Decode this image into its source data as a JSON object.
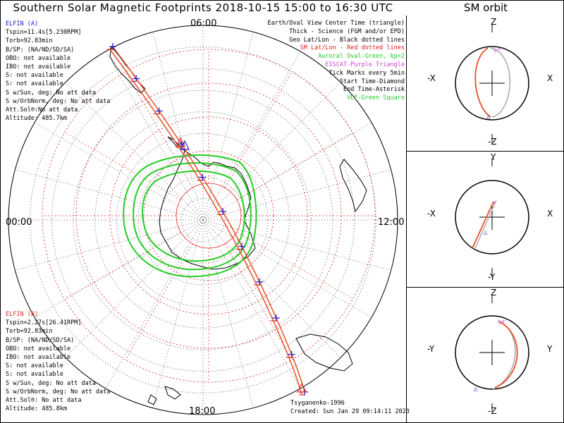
{
  "title": "Southern Solar Magnetic Footprints 2018-10-15 15:00 to 16:30 UTC",
  "orbit_title": "SM orbit",
  "colors": {
    "probe_a": "#2222cc",
    "probe_b": "#dd3322",
    "aurora": "#22cc22",
    "eiscat": "#cc44cc",
    "vlf": "#22cc22",
    "grid_red": "#e02020",
    "track": "#e8502a"
  },
  "hours": {
    "top": "06:00",
    "left": "00:00",
    "right": "12:00",
    "bottom": "18:00"
  },
  "probe_a": {
    "name": "ELFIN (A)",
    "lines": [
      "Tspin=11.4s[5.230RPM]",
      "Torb=92.83min",
      "B/SP: (NA/ND/SD/SA)",
      "OBO: not available",
      "IBO: not available",
      "S: not available",
      "S: not available",
      "S w/Sun, deg: No att data",
      "S w/OrbNorm, deg: No att data",
      "Att.Sol®:No att data",
      "Altitude: 485.7km"
    ]
  },
  "probe_b": {
    "name": "ELFIN (B)",
    "lines": [
      "Tspin=2.27s[26.41RPM]",
      "Torb=92.83min",
      "B/SP: (NA/ND/SD/SA)",
      "OBO: not available",
      "IBO: not available",
      "S: not available",
      "S: not available",
      "S w/Sun, deg: No att data",
      "S w/OrbNorm, deg: No att data",
      "Att.Sol®: No att data",
      "Altitude: 485.8km"
    ]
  },
  "legend": [
    {
      "text": "Earth/Oval View Center Time (triangle)",
      "color": "#000000"
    },
    {
      "text": "Thick - Science (FGM and/or EPD)",
      "color": "#000000"
    },
    {
      "text": "Geo Lat/Lon - Black dotted lines",
      "color": "#000000"
    },
    {
      "text": "SM Lat/Lon - Red dotted lines",
      "color": "#e02020"
    },
    {
      "text": "Auroral Oval-Green, kp=2",
      "color": "#22cc22"
    },
    {
      "text": "EISCAT-Purple Triangle",
      "color": "#cc44cc"
    },
    {
      "text": "Tick Marks every 5min",
      "color": "#000000"
    },
    {
      "text": "Start Time-Diamond",
      "color": "#000000"
    },
    {
      "text": "End Time-Asterisk",
      "color": "#000000"
    },
    {
      "text": "VLF-Green Square",
      "color": "#22cc22"
    }
  ],
  "credit": [
    "Tsyganenko-1996",
    "Created: Sun Jan 29 09:14:11 2023"
  ],
  "panels": [
    {
      "top": "Z",
      "bottom": "-Z",
      "left": "-X",
      "right": "X"
    },
    {
      "top": "Y",
      "bottom": "-Y",
      "left": "-X",
      "right": "X"
    },
    {
      "top": "Z",
      "bottom": "-Z",
      "left": "-Y",
      "right": "Y"
    }
  ]
}
